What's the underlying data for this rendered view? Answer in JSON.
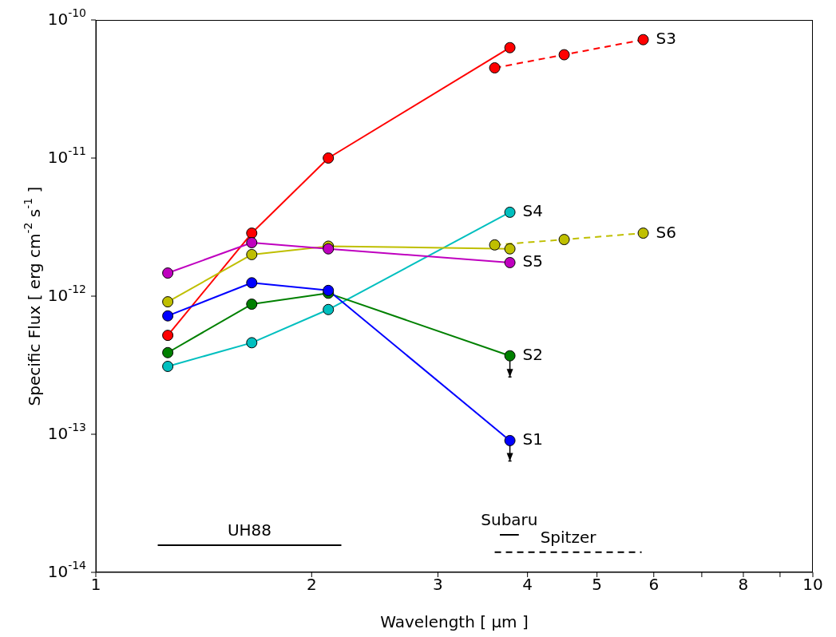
{
  "chart_data": {
    "type": "line",
    "xlabel": "Wavelength [ μm ]",
    "ylabel": "Specific Flux [ erg cm$^{-2}$ s$^{-1}$ ]",
    "log": "xy",
    "marker": "circle",
    "line_style": "solid",
    "xlim": [
      1,
      10
    ],
    "xticks": [
      1,
      2,
      3,
      4,
      5,
      6,
      {
        "value": 7,
        "label": null
      },
      8,
      {
        "value": 9,
        "label": null
      },
      10
    ],
    "ylim": [
      1e-14,
      1e-10
    ],
    "yticks": [
      {
        "value": 1e-14,
        "label": "10$^{-14}$"
      },
      {
        "value": 1e-13,
        "label": "10$^{-13}$"
      },
      {
        "value": 1e-12,
        "label": "10$^{-12}$"
      },
      {
        "value": 1e-11,
        "label": "10$^{-11}$"
      },
      {
        "value": 1e-10,
        "label": "10$^{-10}$"
      }
    ],
    "series": [
      {
        "color": "#ff0000",
        "x": [
          1.26,
          1.65,
          2.11,
          3.78
        ],
        "values": [
          5.2e-13,
          2.86e-12,
          1e-11,
          6.3e-11
        ]
      },
      {
        "name": "S3",
        "color": "#ff0000",
        "x": [
          3.6,
          4.5,
          5.8
        ],
        "values": [
          4.5e-11,
          5.6e-11,
          7.2e-11
        ],
        "line_style": "dashed"
      },
      {
        "name": "S4",
        "color": "#00bfbf",
        "x": [
          1.26,
          1.65,
          2.11,
          3.78
        ],
        "values": [
          3.1e-13,
          4.6e-13,
          8e-13,
          4.05e-12
        ]
      },
      {
        "color": "#bfbf00",
        "x": [
          1.26,
          1.65,
          2.11,
          3.78
        ],
        "values": [
          9.1e-13,
          2e-12,
          2.3e-12,
          2.2e-12
        ]
      },
      {
        "name": "S6",
        "color": "#bfbf00",
        "x": [
          3.6,
          4.5,
          5.8
        ],
        "values": [
          2.35e-12,
          2.57e-12,
          2.86e-12
        ],
        "line_style": "dashed"
      },
      {
        "name": "S5",
        "color": "#bf00bf",
        "x": [
          1.26,
          1.65,
          2.11,
          3.78
        ],
        "values": [
          1.47e-12,
          2.44e-12,
          2.2e-12,
          1.75e-12
        ]
      },
      {
        "name": "S2",
        "color": "#008000",
        "x": [
          1.26,
          1.65,
          2.11,
          3.78
        ],
        "values": [
          3.9e-13,
          8.75e-13,
          1.05e-12,
          3.7e-13
        ],
        "errors": [
          null,
          null,
          null,
          [
            2.6e-13,
            3.7e-13
          ]
        ]
      },
      {
        "name": "S1",
        "color": "#0000ff",
        "x": [
          1.26,
          1.65,
          2.11,
          3.78
        ],
        "values": [
          7.2e-13,
          1.25e-12,
          1.1e-12,
          9e-14
        ],
        "errors": [
          null,
          null,
          null,
          [
            6.4e-14,
            9e-14
          ]
        ]
      },
      {
        "name": "UH88",
        "color": "#000000",
        "x": [
          1.22,
          2.2
        ],
        "values": [
          1.57e-14,
          1.57e-14
        ],
        "marker": "none"
      },
      {
        "name": "Subaru",
        "color": "#000000",
        "x": [
          3.66,
          3.89
        ],
        "values": [
          1.87e-14,
          1.87e-14
        ],
        "marker": "none"
      },
      {
        "name": "Spitzer",
        "color": "#000000",
        "x": [
          3.6,
          5.77
        ],
        "values": [
          1.4e-14,
          1.4e-14
        ],
        "marker": "none",
        "line_style": "dashed"
      }
    ]
  }
}
